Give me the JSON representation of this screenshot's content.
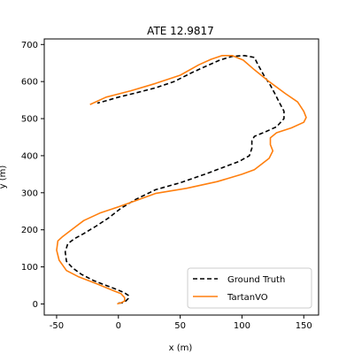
{
  "chart_data": {
    "type": "line",
    "title": "ATE 12.9817",
    "xlabel": "x (m)",
    "ylabel": "y (m)",
    "xlim": [
      -60,
      162
    ],
    "ylim": [
      -30,
      715
    ],
    "xticks": [
      -50,
      0,
      50,
      100,
      150
    ],
    "yticks": [
      0,
      100,
      200,
      300,
      400,
      500,
      600,
      700
    ],
    "grid": false,
    "legend_position": "lower-right",
    "series": [
      {
        "name": "Ground Truth",
        "color": "#000000",
        "dash": "dashed",
        "x": [
          0,
          3,
          6,
          8,
          8,
          5,
          -2,
          -10,
          -20,
          -30,
          -37,
          -42,
          -43,
          -41,
          -36,
          -28,
          -18,
          -8,
          2,
          14,
          30,
          50,
          70,
          86,
          98,
          106,
          108,
          108,
          110,
          118,
          128,
          134,
          134,
          130,
          127,
          123,
          118,
          113,
          110,
          102,
          92,
          82,
          70,
          60,
          45,
          30,
          15,
          0,
          -10,
          -17
        ],
        "y": [
          2,
          3,
          8,
          15,
          23,
          30,
          40,
          50,
          63,
          80,
          97,
          115,
          140,
          162,
          175,
          190,
          210,
          232,
          258,
          282,
          308,
          327,
          350,
          370,
          385,
          400,
          420,
          440,
          452,
          463,
          478,
          500,
          520,
          545,
          565,
          590,
          615,
          645,
          665,
          670,
          668,
          658,
          640,
          625,
          600,
          583,
          570,
          558,
          548,
          542
        ]
      },
      {
        "name": "TartanVO",
        "color": "#ff7f0e",
        "dash": "solid",
        "x": [
          -1,
          2,
          5,
          5,
          2,
          -5,
          -18,
          -32,
          -42,
          -48,
          -50,
          -49,
          -45,
          -38,
          -28,
          -15,
          0,
          15,
          30,
          55,
          80,
          100,
          110,
          115,
          122,
          125,
          123,
          123,
          128,
          140,
          150,
          152,
          150,
          145,
          135,
          122,
          110,
          101,
          92,
          84,
          75,
          65,
          50,
          30,
          10,
          -10,
          -23
        ],
        "y": [
          0,
          3,
          8,
          17,
          28,
          37,
          55,
          73,
          90,
          118,
          145,
          170,
          182,
          200,
          225,
          245,
          262,
          280,
          298,
          312,
          330,
          350,
          362,
          375,
          393,
          413,
          430,
          448,
          462,
          475,
          490,
          503,
          520,
          545,
          568,
          600,
          632,
          658,
          670,
          670,
          660,
          645,
          617,
          595,
          575,
          558,
          538
        ]
      }
    ]
  }
}
